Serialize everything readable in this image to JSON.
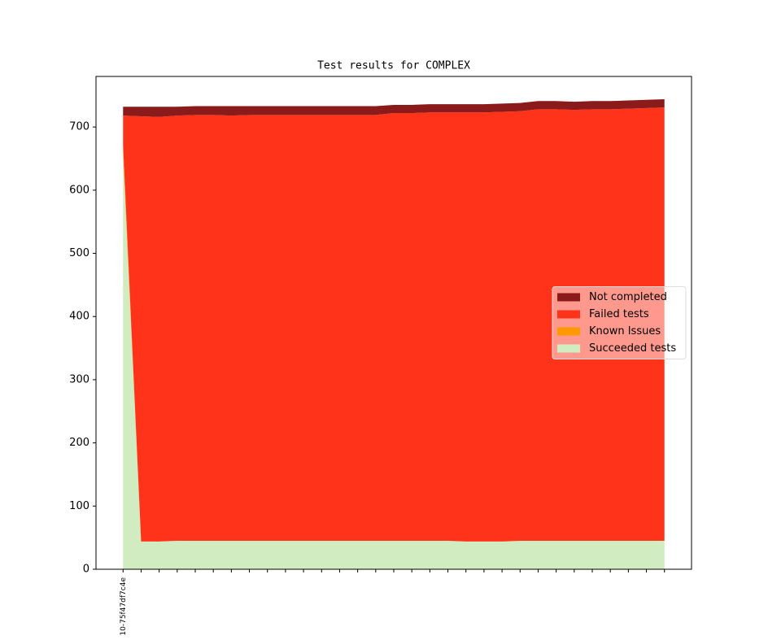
{
  "chart_data": {
    "type": "stacked_area",
    "title": "Test results for COMPLEX",
    "categories": [
      "10-75f47df7c4e",
      null,
      null,
      null,
      null,
      null,
      null,
      null,
      null,
      null,
      null,
      null,
      null,
      null,
      null,
      null,
      null,
      null,
      null,
      null,
      null,
      null,
      null,
      null,
      null,
      null,
      null,
      null,
      null,
      null,
      null
    ],
    "series": [
      {
        "name": "Succeeded tests",
        "color": "#d0ecc0",
        "values": [
          660,
          44,
          44,
          45,
          45,
          45,
          45,
          45,
          45,
          45,
          45,
          45,
          45,
          45,
          45,
          45,
          45,
          45,
          45,
          44,
          44,
          44,
          45,
          45,
          45,
          45,
          45,
          45,
          45,
          45,
          45
        ]
      },
      {
        "name": "Known Issues",
        "color": "#ff9900",
        "values": [
          12,
          0,
          0,
          0,
          0,
          0,
          0,
          0,
          0,
          0,
          0,
          0,
          0,
          0,
          0,
          0,
          0,
          0,
          0,
          0,
          0,
          0,
          0,
          0,
          0,
          0,
          0,
          0,
          0,
          0,
          0
        ]
      },
      {
        "name": "Failed tests",
        "color": "#ff331a",
        "values": [
          46,
          673,
          672,
          673,
          674,
          674,
          673,
          674,
          674,
          674,
          674,
          674,
          674,
          674,
          674,
          677,
          677,
          678,
          678,
          679,
          679,
          680,
          680,
          683,
          683,
          682,
          683,
          683,
          684,
          685,
          686
        ]
      },
      {
        "name": "Not completed",
        "color": "#8b1a1a",
        "values": [
          14,
          15,
          16,
          14,
          14,
          14,
          15,
          14,
          14,
          14,
          14,
          14,
          14,
          14,
          14,
          13,
          13,
          13,
          13,
          13,
          13,
          13,
          13,
          13,
          13,
          13,
          13,
          13,
          13,
          13,
          13
        ]
      }
    ],
    "xlim": [
      -1.5,
      31.5
    ],
    "ylim": [
      0,
      780
    ],
    "yticks": [
      0,
      100,
      200,
      300,
      400,
      500,
      600,
      700
    ],
    "legend": "center right"
  }
}
